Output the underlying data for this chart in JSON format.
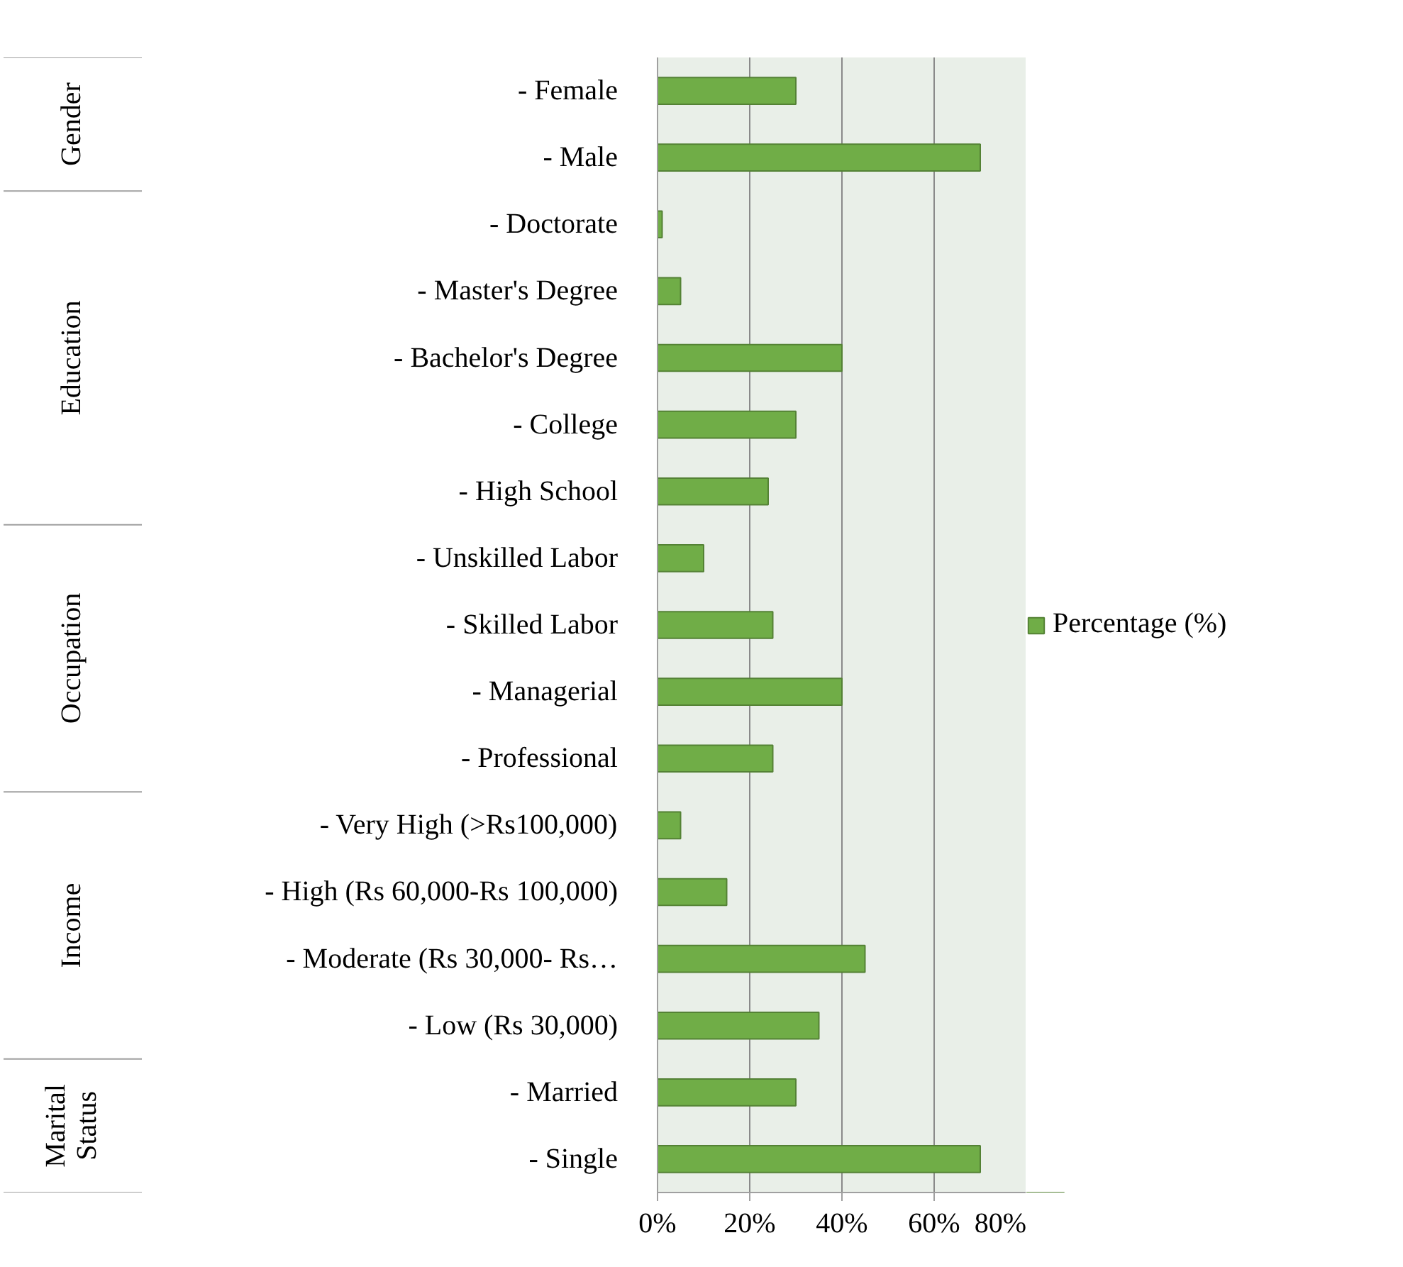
{
  "chart_data": {
    "type": "bar",
    "orientation": "horizontal",
    "categories": [
      "- Female",
      "- Male",
      "- Doctorate",
      "- Master's Degree",
      "- Bachelor's Degree",
      "- College",
      "- High School",
      "- Unskilled Labor",
      "- Skilled Labor",
      "- Managerial",
      "- Professional",
      "- Very High (>Rs100,000)",
      "- High (Rs 60,000-Rs 100,000)",
      "- Moderate (Rs 30,000- Rs…",
      "- Low (Rs 30,000)",
      "- Married",
      "- Single"
    ],
    "series": [
      {
        "name": "Percentage (%)",
        "color": "#70ad47",
        "values": [
          30,
          70,
          1,
          5,
          40,
          30,
          24,
          10,
          25,
          40,
          25,
          5,
          15,
          45,
          35,
          30,
          70
        ]
      }
    ],
    "annotations": [
      "Gender",
      "Education",
      "Occupation",
      "Income",
      "Marital\nStatus"
    ],
    "xlim": [
      0,
      80
    ],
    "xticks": [
      {
        "value": 0,
        "label": "0%"
      },
      {
        "value": 20,
        "label": "20%"
      },
      {
        "value": 40,
        "label": "40%"
      },
      {
        "value": 60,
        "label": "60%"
      },
      {
        "value": 80,
        "label": "80%"
      }
    ],
    "grid": "x",
    "legend": "right"
  }
}
